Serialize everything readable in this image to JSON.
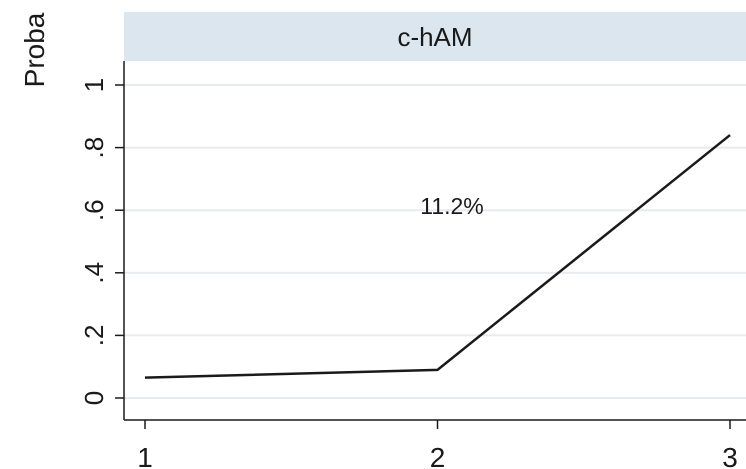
{
  "chart_data": {
    "type": "line",
    "panel_title": "c-hAM",
    "ylabel": "Proba",
    "x": [
      1,
      2,
      3
    ],
    "x_ticks": [
      "1",
      "2",
      "3"
    ],
    "y_ticks": [
      0,
      0.2,
      0.4,
      0.6,
      0.8,
      1
    ],
    "y_tick_labels": [
      "0",
      ".2",
      ".4",
      ".6",
      ".8",
      "1"
    ],
    "series": [
      {
        "values": [
          0.065,
          0.09,
          0.84
        ]
      }
    ],
    "annotation": "11.2%",
    "ylim": [
      0,
      1
    ],
    "grid": true,
    "colors": {
      "panel_header": "#dbe6ee",
      "line": "#1a1a1a",
      "grid": "#e6ebef",
      "text": "#1a1a1a"
    }
  }
}
